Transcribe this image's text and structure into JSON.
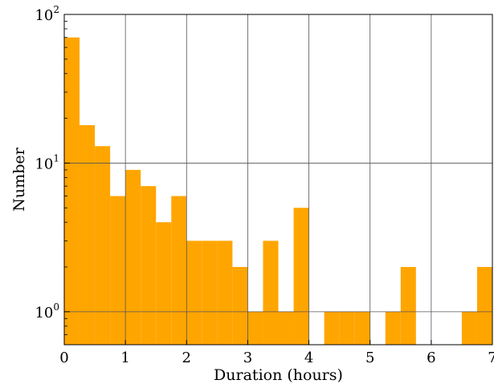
{
  "chart_data": {
    "type": "bar",
    "subtype": "histogram",
    "xlabel": "Duration (hours)",
    "ylabel": "Number",
    "xlim": [
      0,
      7
    ],
    "ylim": [
      0.6,
      100
    ],
    "yscale": "log",
    "grid": true,
    "bar_color": "#ffa500",
    "bin_width": 0.25,
    "bins": [
      {
        "x0": 0.0,
        "x1": 0.25,
        "value": 70
      },
      {
        "x0": 0.25,
        "x1": 0.5,
        "value": 18
      },
      {
        "x0": 0.5,
        "x1": 0.75,
        "value": 13
      },
      {
        "x0": 0.75,
        "x1": 1.0,
        "value": 6
      },
      {
        "x0": 1.0,
        "x1": 1.25,
        "value": 9
      },
      {
        "x0": 1.25,
        "x1": 1.5,
        "value": 7
      },
      {
        "x0": 1.5,
        "x1": 1.75,
        "value": 4
      },
      {
        "x0": 1.75,
        "x1": 2.0,
        "value": 6
      },
      {
        "x0": 2.0,
        "x1": 2.25,
        "value": 3
      },
      {
        "x0": 2.25,
        "x1": 2.5,
        "value": 3
      },
      {
        "x0": 2.5,
        "x1": 2.75,
        "value": 3
      },
      {
        "x0": 2.75,
        "x1": 3.0,
        "value": 2
      },
      {
        "x0": 3.0,
        "x1": 3.25,
        "value": 1
      },
      {
        "x0": 3.25,
        "x1": 3.5,
        "value": 3
      },
      {
        "x0": 3.5,
        "x1": 3.75,
        "value": 1
      },
      {
        "x0": 3.75,
        "x1": 4.0,
        "value": 5
      },
      {
        "x0": 4.25,
        "x1": 4.5,
        "value": 1
      },
      {
        "x0": 4.5,
        "x1": 4.75,
        "value": 1
      },
      {
        "x0": 4.75,
        "x1": 5.0,
        "value": 1
      },
      {
        "x0": 5.25,
        "x1": 5.5,
        "value": 1
      },
      {
        "x0": 5.5,
        "x1": 5.75,
        "value": 2
      },
      {
        "x0": 6.5,
        "x1": 6.75,
        "value": 1
      },
      {
        "x0": 6.75,
        "x1": 7.0,
        "value": 2
      }
    ],
    "x_ticks": [
      0,
      1,
      2,
      3,
      4,
      5,
      6,
      7
    ],
    "x_tick_labels": [
      "0",
      "1",
      "2",
      "3",
      "4",
      "5",
      "6",
      "7"
    ],
    "y_ticks": [
      1,
      10,
      100
    ],
    "y_tick_labels": [
      {
        "base": "10",
        "exp": "0"
      },
      {
        "base": "10",
        "exp": "1"
      },
      {
        "base": "10",
        "exp": "2"
      }
    ]
  }
}
